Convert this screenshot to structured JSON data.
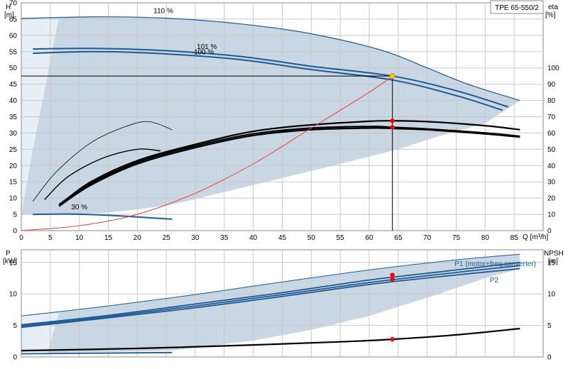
{
  "title": "TPE 65-550/2",
  "colors": {
    "envelope": "#c9d6e3",
    "envelope_light": "#e6eef6",
    "curve_blue": "#1f5a94",
    "system_curve": "#e8433f",
    "marker": "#ff0000",
    "operating_point": "#f5c518",
    "grid": "#c8c8c8"
  },
  "chart_data": [
    {
      "type": "line",
      "panel": "head",
      "ylabel_top": "H",
      "ylabel_unit": "[m]",
      "xlabel": "Q [m³/h]",
      "right_label_top": "eta",
      "right_label_unit": "[%]",
      "xlim": [
        0,
        90
      ],
      "ylim": [
        0,
        70
      ],
      "right_ylim": [
        0,
        140
      ],
      "x_ticks": [
        0,
        5,
        10,
        15,
        20,
        25,
        30,
        35,
        40,
        45,
        50,
        55,
        60,
        65,
        70,
        75,
        80,
        85
      ],
      "y_ticks": [
        0,
        5,
        10,
        15,
        20,
        25,
        30,
        35,
        40,
        45,
        50,
        55,
        60,
        65,
        70
      ],
      "right_ticks": [
        0,
        10,
        20,
        30,
        40,
        50,
        60,
        70,
        80,
        90,
        100
      ],
      "curve_labels": [
        "110 %",
        "101 %",
        "100 %",
        "30 %"
      ],
      "operating_point": {
        "q": 64,
        "h": 47.5
      },
      "eta_points": [
        {
          "q": 64,
          "eta": 67.5
        },
        {
          "q": 64,
          "eta": 63.5
        }
      ],
      "series": [
        {
          "role": "head-110",
          "x": [
            0,
            13,
            25,
            38,
            50,
            62,
            70,
            77,
            86
          ],
          "y": [
            65.2,
            65.7,
            65.3,
            63.5,
            60.5,
            55.5,
            50,
            45,
            40
          ]
        },
        {
          "role": "head-101",
          "x": [
            2,
            13,
            25,
            38,
            50,
            64,
            75,
            84
          ],
          "y": [
            55.8,
            56,
            55.3,
            53.5,
            50.5,
            47.5,
            43,
            38
          ]
        },
        {
          "role": "head-100",
          "x": [
            2,
            13,
            25,
            38,
            50,
            64,
            75,
            83
          ],
          "y": [
            54.5,
            55,
            54.3,
            52.5,
            49.5,
            46.3,
            41.5,
            37
          ]
        },
        {
          "role": "head-30",
          "x": [
            2,
            8,
            14,
            20,
            26
          ],
          "y": [
            5,
            5.1,
            4.8,
            4.2,
            3.5
          ]
        },
        {
          "role": "eta-110",
          "x": [
            7,
            12,
            20,
            30,
            40,
            50,
            60,
            64,
            70,
            80,
            86
          ],
          "y": [
            17,
            30,
            43,
            53,
            61,
            65,
            67.2,
            67.5,
            67,
            64.5,
            62
          ]
        },
        {
          "role": "eta-101",
          "x": [
            6.5,
            12,
            20,
            30,
            40,
            50,
            60,
            64,
            70,
            80,
            86
          ],
          "y": [
            16,
            29,
            42,
            52,
            59.5,
            63,
            64,
            63.5,
            62.5,
            60,
            58
          ]
        },
        {
          "role": "eta-100",
          "x": [
            6.5,
            12,
            20,
            30,
            40,
            50,
            60,
            64,
            70,
            80,
            86
          ],
          "y": [
            15,
            28,
            41,
            51,
            58.5,
            62,
            63,
            62.8,
            62,
            59.5,
            57.5
          ]
        },
        {
          "role": "eta-mid",
          "x": [
            4,
            8,
            14,
            20,
            24
          ],
          "y": [
            19,
            33,
            44.5,
            50,
            49
          ]
        },
        {
          "role": "eta-30",
          "x": [
            2,
            6,
            12,
            18,
            22,
            26
          ],
          "y": [
            18,
            36,
            54,
            64,
            67,
            62
          ]
        },
        {
          "role": "system-curve",
          "x": [
            0,
            10,
            20,
            30,
            40,
            50,
            60,
            64
          ],
          "y": [
            0,
            1.5,
            5,
            11.5,
            20.5,
            31.5,
            42.5,
            47.5
          ]
        }
      ]
    },
    {
      "type": "line",
      "panel": "power",
      "ylabel_top": "P",
      "ylabel_unit": "[kW]",
      "right_label_top": "NPSH",
      "right_label_unit": "[m]",
      "xlim": [
        0,
        90
      ],
      "ylim": [
        0,
        17
      ],
      "y_ticks": [
        0,
        5,
        10,
        15
      ],
      "right_ticks": [
        0,
        5,
        10,
        15
      ],
      "legend": [
        "P1 (motor+freq.converter)",
        "P2"
      ],
      "markers": [
        {
          "q": 64,
          "p": 13
        },
        {
          "q": 64,
          "p": 12.3
        },
        {
          "q": 64,
          "p": 2.8
        }
      ],
      "series": [
        {
          "role": "p1-110",
          "x": [
            0,
            15,
            30,
            45,
            60,
            75,
            86
          ],
          "y": [
            6.5,
            8.1,
            9.9,
            11.9,
            13.8,
            15.4,
            16.3
          ]
        },
        {
          "role": "p1-101",
          "x": [
            0,
            15,
            30,
            45,
            60,
            75,
            86
          ],
          "y": [
            5.1,
            6.6,
            8.4,
            10.2,
            12.2,
            13.8,
            15
          ]
        },
        {
          "role": "p2-101",
          "x": [
            0,
            15,
            30,
            45,
            60,
            75,
            86
          ],
          "y": [
            4.9,
            6.4,
            8.1,
            9.9,
            11.8,
            13.4,
            14.5
          ]
        },
        {
          "role": "p2-100",
          "x": [
            0,
            15,
            30,
            45,
            60,
            75,
            86
          ],
          "y": [
            4.7,
            6.2,
            7.8,
            9.6,
            11.5,
            13,
            14
          ]
        },
        {
          "role": "p1-30",
          "x": [
            0,
            26
          ],
          "y": [
            0.5,
            0.7
          ]
        },
        {
          "role": "npsh",
          "x": [
            0,
            20,
            40,
            55,
            64,
            75,
            86
          ],
          "y": [
            1,
            1.35,
            1.9,
            2.4,
            2.8,
            3.5,
            4.5
          ]
        }
      ]
    }
  ]
}
